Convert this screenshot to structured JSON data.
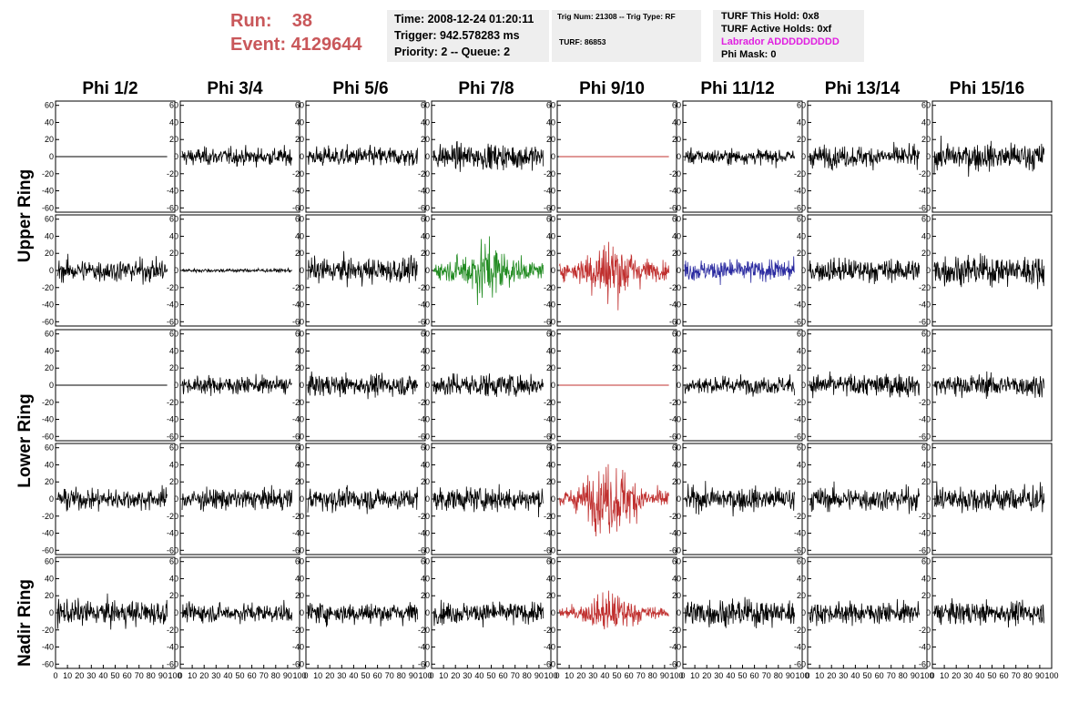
{
  "header": {
    "run_label": "Run:    38",
    "event_label": "Event: 4129644"
  },
  "info_box_1": {
    "time": "Time: 2008-12-24 01:20:11",
    "trigger": "Trigger: 942.578283 ms",
    "priority": "Priority: 2 -- Queue: 2"
  },
  "info_box_2": {
    "trig": "Trig Num: 21308 -- Trig Type: RF",
    "turf": "TURF: 86853"
  },
  "info_box_3": {
    "hold": "TURF This Hold: 0x8",
    "active": "TURF Active Holds: 0xf",
    "labrador": "Labrador ADDDDDDDDD",
    "phi_mask": "Phi Mask: 0"
  },
  "columns": [
    "Phi 1/2",
    "Phi 3/4",
    "Phi 5/6",
    "Phi 7/8",
    "Phi 9/10",
    "Phi 11/12",
    "Phi 13/14",
    "Phi 15/16"
  ],
  "rings": [
    {
      "label": "Upper Ring"
    },
    {
      "label": "Lower Ring"
    },
    {
      "label": "Nadir Ring"
    }
  ],
  "y_ticks": [
    "60",
    "40",
    "20",
    "0",
    "-20",
    "-40",
    "-60"
  ],
  "x_ticks": [
    "0",
    "10",
    "20",
    "30",
    "40",
    "50",
    "60",
    "70",
    "80",
    "90",
    "100"
  ],
  "colors": {
    "default": "#000000",
    "green": "#1f8a1f",
    "red": "#c0302f",
    "blue": "#2a2aa0",
    "header_red": "#c9575a",
    "magenta": "#e020e0"
  },
  "panels": [
    {
      "row": 0,
      "col": 0,
      "trace": "flat",
      "color": "default"
    },
    {
      "row": 0,
      "col": 1,
      "trace": "noise",
      "amp": 14,
      "color": "default"
    },
    {
      "row": 0,
      "col": 2,
      "trace": "noise",
      "amp": 16,
      "color": "default"
    },
    {
      "row": 0,
      "col": 3,
      "trace": "noise",
      "amp": 20,
      "color": "default"
    },
    {
      "row": 0,
      "col": 4,
      "trace": "flat",
      "color": "red"
    },
    {
      "row": 0,
      "col": 5,
      "trace": "noise",
      "amp": 12,
      "color": "default"
    },
    {
      "row": 0,
      "col": 6,
      "trace": "noise",
      "amp": 17,
      "color": "default"
    },
    {
      "row": 0,
      "col": 7,
      "trace": "noise",
      "amp": 22,
      "color": "default"
    },
    {
      "row": 1,
      "col": 0,
      "trace": "noise",
      "amp": 18,
      "color": "default"
    },
    {
      "row": 1,
      "col": 1,
      "trace": "noise",
      "amp": 3,
      "color": "default"
    },
    {
      "row": 1,
      "col": 2,
      "trace": "noise",
      "amp": 20,
      "color": "default"
    },
    {
      "row": 1,
      "col": 3,
      "trace": "pulse",
      "amp": 30,
      "color": "green"
    },
    {
      "row": 1,
      "col": 4,
      "trace": "pulse",
      "amp": 32,
      "color": "red"
    },
    {
      "row": 1,
      "col": 5,
      "trace": "noise",
      "amp": 17,
      "color": "blue"
    },
    {
      "row": 1,
      "col": 6,
      "trace": "noise",
      "amp": 19,
      "color": "default"
    },
    {
      "row": 1,
      "col": 7,
      "trace": "noise",
      "amp": 24,
      "color": "default"
    },
    {
      "row": 2,
      "col": 0,
      "trace": "flat",
      "color": "default"
    },
    {
      "row": 2,
      "col": 1,
      "trace": "noise",
      "amp": 14,
      "color": "default"
    },
    {
      "row": 2,
      "col": 2,
      "trace": "noise",
      "amp": 17,
      "color": "default"
    },
    {
      "row": 2,
      "col": 3,
      "trace": "noise",
      "amp": 19,
      "color": "default"
    },
    {
      "row": 2,
      "col": 4,
      "trace": "flat",
      "color": "red"
    },
    {
      "row": 2,
      "col": 5,
      "trace": "noise",
      "amp": 14,
      "color": "default"
    },
    {
      "row": 2,
      "col": 6,
      "trace": "noise",
      "amp": 18,
      "color": "default"
    },
    {
      "row": 2,
      "col": 7,
      "trace": "noise",
      "amp": 18,
      "color": "default"
    },
    {
      "row": 3,
      "col": 0,
      "trace": "noise",
      "amp": 17,
      "color": "default"
    },
    {
      "row": 3,
      "col": 1,
      "trace": "noise",
      "amp": 17,
      "color": "default"
    },
    {
      "row": 3,
      "col": 2,
      "trace": "noise",
      "amp": 18,
      "color": "default"
    },
    {
      "row": 3,
      "col": 3,
      "trace": "noise",
      "amp": 19,
      "color": "default"
    },
    {
      "row": 3,
      "col": 4,
      "trace": "pulse",
      "amp": 35,
      "color": "red"
    },
    {
      "row": 3,
      "col": 5,
      "trace": "noise",
      "amp": 19,
      "color": "default"
    },
    {
      "row": 3,
      "col": 6,
      "trace": "noise",
      "amp": 19,
      "color": "default"
    },
    {
      "row": 3,
      "col": 7,
      "trace": "noise",
      "amp": 22,
      "color": "default"
    },
    {
      "row": 4,
      "col": 0,
      "trace": "noise",
      "amp": 20,
      "color": "default"
    },
    {
      "row": 4,
      "col": 1,
      "trace": "noise",
      "amp": 15,
      "color": "default"
    },
    {
      "row": 4,
      "col": 2,
      "trace": "noise",
      "amp": 17,
      "color": "default"
    },
    {
      "row": 4,
      "col": 3,
      "trace": "noise",
      "amp": 17,
      "color": "default"
    },
    {
      "row": 4,
      "col": 4,
      "trace": "pulse",
      "amp": 20,
      "color": "red"
    },
    {
      "row": 4,
      "col": 5,
      "trace": "noise",
      "amp": 22,
      "color": "default"
    },
    {
      "row": 4,
      "col": 6,
      "trace": "noise",
      "amp": 17,
      "color": "default"
    },
    {
      "row": 4,
      "col": 7,
      "trace": "noise",
      "amp": 18,
      "color": "default"
    }
  ]
}
